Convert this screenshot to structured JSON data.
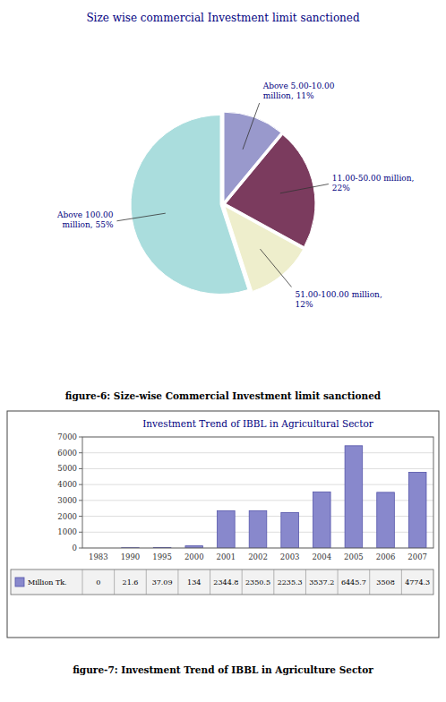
{
  "chart_data": [
    {
      "type": "pie",
      "title": "Size wise commercial Investment limit sanctioned",
      "categories": [
        "Above 5.00-10.00\nmillion, 11%",
        "11.00-50.00 million,\n22%",
        "51.00-100.00 million,\n12%",
        "Above 100.00\nmillion, 55%"
      ],
      "values": [
        11,
        22,
        12,
        55
      ],
      "colors": [
        "#9999cc",
        "#7b3b5e",
        "#eeeecc",
        "#aadddd"
      ],
      "caption": "figure-6: Size-wise Commercial Investment limit sanctioned"
    },
    {
      "type": "bar",
      "title": "Investment Trend of IBBL in Agricultural Sector",
      "categories": [
        "1983",
        "1990",
        "1995",
        "2000",
        "2001",
        "2002",
        "2003",
        "2004",
        "2005",
        "2006",
        "2007"
      ],
      "series": [
        {
          "name": "Million Tk.",
          "color": "#8888cc",
          "values": [
            0,
            21.6,
            37.09,
            134,
            2344.8,
            2350.5,
            2235.3,
            3537.2,
            6445.7,
            3508,
            4774.3
          ]
        }
      ],
      "ylim": [
        0,
        7000
      ],
      "yticks": [
        0,
        1000,
        2000,
        3000,
        4000,
        5000,
        6000,
        7000
      ],
      "grid": true,
      "legend": "bottom",
      "data_labels": true,
      "caption": "figure-7: Investment Trend of IBBL in Agriculture Sector"
    }
  ]
}
